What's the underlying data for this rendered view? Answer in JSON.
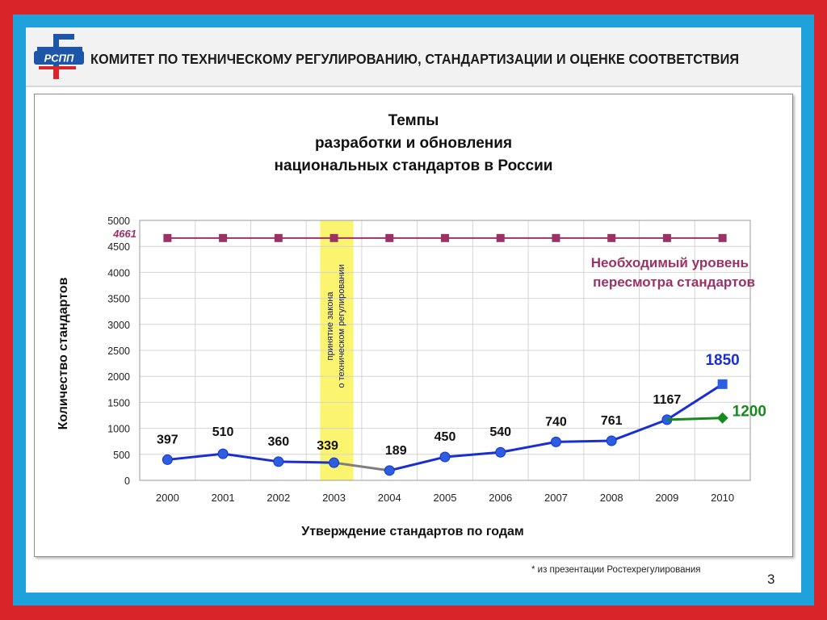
{
  "header": {
    "title": "КОМИТЕТ ПО ТЕХНИЧЕСКОМУ РЕГУЛИРОВАНИЮ, СТАНДАРТИЗАЦИИ И ОЦЕНКЕ СООТВЕТСТВИЯ",
    "logo_text": "РСПП"
  },
  "colors": {
    "outer_border": "#d9252a",
    "inner_border": "#1fa1dc",
    "main_series": "#1a2fcf",
    "main_marker": "#2b5fe0",
    "green_series": "#178a1e",
    "required_series": "#9b3266",
    "highlight_band": "#fbf46f",
    "bridge_segment": "#7f7f7f"
  },
  "chart_data": {
    "type": "line",
    "title": [
      "Темпы",
      "разработки и обновления",
      "национальных стандартов в России"
    ],
    "xlabel": "Утверждение стандартов по годам",
    "ylabel": "Количество стандартов",
    "ylim": [
      0,
      5000
    ],
    "yticks": [
      "0",
      "500",
      "1000",
      "1500",
      "2000",
      "2500",
      "3000",
      "3500",
      "4000",
      "4500",
      "5000"
    ],
    "categories": [
      "2000",
      "2001",
      "2002",
      "2003",
      "2004",
      "2005",
      "2006",
      "2007",
      "2008",
      "2009",
      "2010"
    ],
    "grid": true,
    "series": [
      {
        "values": [
          397,
          510,
          360,
          339,
          189,
          450,
          540,
          740,
          761,
          1167,
          1850
        ],
        "labels": [
          "397",
          "510",
          "360",
          "339",
          "189",
          "450",
          "540",
          "740",
          "761",
          "1167",
          "1850"
        ]
      },
      {
        "x": [
          "2009",
          "2010"
        ],
        "values": [
          1167,
          1200
        ],
        "labels": [
          "",
          "1200"
        ]
      },
      {
        "values": [
          4661,
          4661,
          4661,
          4661,
          4661,
          4661,
          4661,
          4661,
          4661,
          4661,
          4661
        ],
        "labels": [
          "4661"
        ]
      }
    ],
    "annotations": {
      "required_level": [
        "Необходимый уровень",
        "пересмотра   стандартов"
      ],
      "law_band": [
        "принятие закона",
        "о техническом регулировании"
      ]
    }
  },
  "footnote": "* из презентации Ростехрегулирования",
  "page_number": "3"
}
